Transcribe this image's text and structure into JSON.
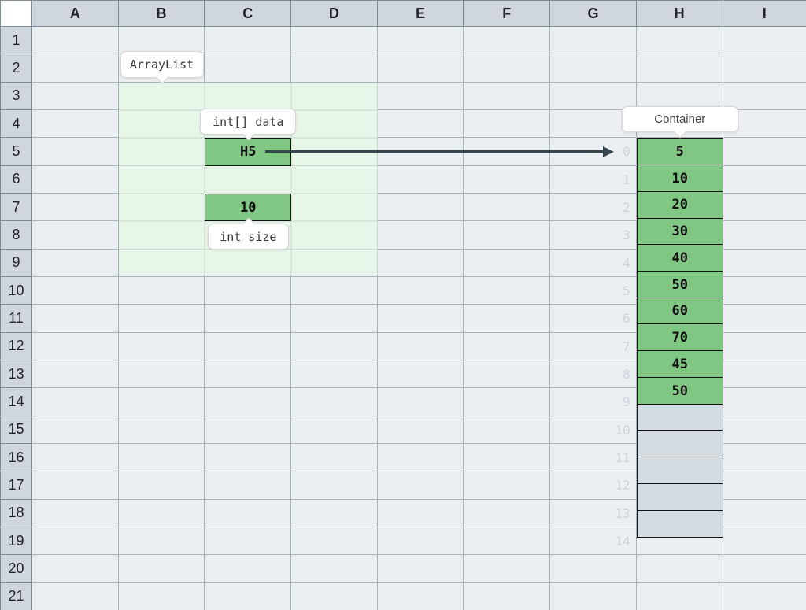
{
  "sheet": {
    "columns": [
      "A",
      "B",
      "C",
      "D",
      "E",
      "F",
      "G",
      "H",
      "I"
    ],
    "rows": [
      "1",
      "2",
      "3",
      "4",
      "5",
      "6",
      "7",
      "8",
      "9",
      "10",
      "11",
      "12",
      "13",
      "14",
      "15",
      "16",
      "17",
      "18",
      "19",
      "20",
      "21"
    ]
  },
  "labels": {
    "arraylist": "ArrayList",
    "data_field": "int[] data",
    "size_field": "int size",
    "container": "Container"
  },
  "arraylist_object": {
    "data_pointer": "H5",
    "size_value": "10"
  },
  "container": {
    "values": [
      "5",
      "10",
      "20",
      "30",
      "40",
      "50",
      "60",
      "70",
      "45",
      "50"
    ],
    "empty_slot_count": 5,
    "indexes": [
      "0",
      "1",
      "2",
      "3",
      "4",
      "5",
      "6",
      "7",
      "8",
      "9",
      "10",
      "11",
      "12",
      "13",
      "14"
    ]
  },
  "colors": {
    "cell_green": "#81C784",
    "region_green": "#E8F5E9",
    "empty_slot": "#D3DAE0",
    "arrow": "#37474F",
    "header_bg": "#CFD7DC",
    "grid_bg": "#ECEFF1",
    "grid_line": "#A7B3BA",
    "index_text": "#CCD3DA"
  }
}
